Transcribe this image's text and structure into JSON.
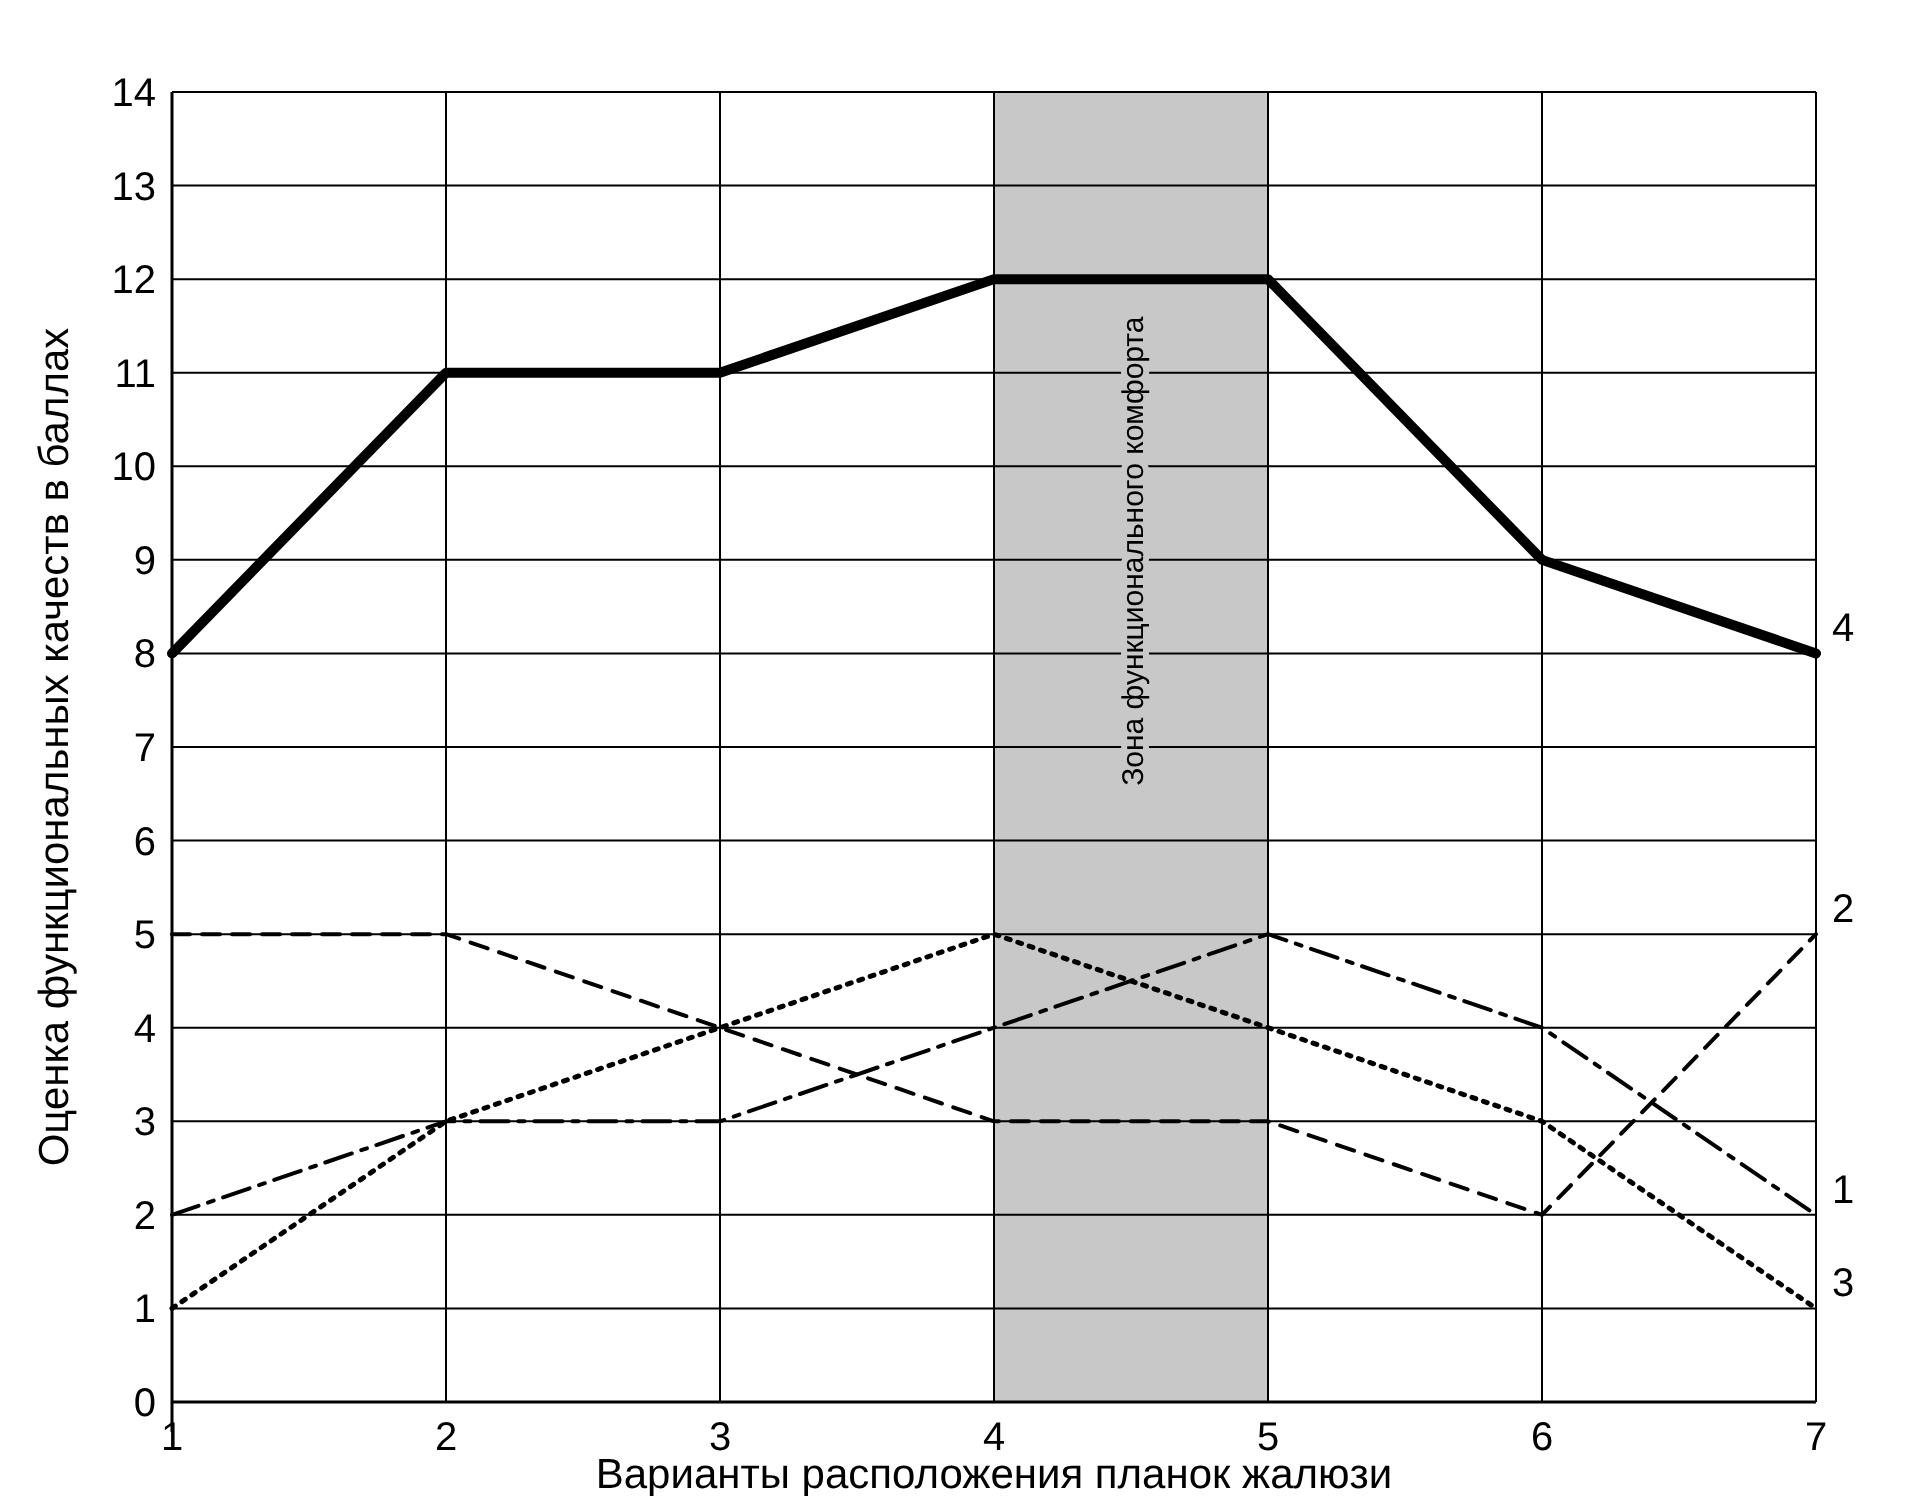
{
  "chart_data": {
    "type": "line",
    "xlabel": "Варианты расположения планок жалюзи",
    "ylabel": "Оценка функциональных качеств в баллах",
    "x": [
      1,
      2,
      3,
      4,
      5,
      6,
      7
    ],
    "xlim": [
      1,
      7
    ],
    "xticks": [
      1,
      2,
      3,
      4,
      5,
      6,
      7
    ],
    "ylim": [
      0,
      14
    ],
    "yticks": [
      0,
      1,
      2,
      3,
      4,
      5,
      6,
      7,
      8,
      9,
      10,
      11,
      12,
      13,
      14
    ],
    "grid": true,
    "legend": false,
    "marker": "none",
    "bands": [
      {
        "axis": "x",
        "from": 4,
        "to": 5,
        "label": "Зона функционального комфорта",
        "color": "#c8c8c8"
      }
    ],
    "series": [
      {
        "name": "1",
        "color": "#000000",
        "line_style": "dashdot",
        "values": [
          2,
          3,
          3,
          4,
          5,
          4,
          2
        ]
      },
      {
        "name": "2",
        "color": "#000000",
        "line_style": "dashed",
        "values": [
          5,
          5,
          4,
          3,
          3,
          2,
          5
        ]
      },
      {
        "name": "3",
        "color": "#000000",
        "line_style": "dotted",
        "values": [
          1,
          3,
          4,
          5,
          4,
          3,
          1
        ]
      },
      {
        "name": "4",
        "color": "#000000",
        "line_style": "solid",
        "values": [
          8,
          11,
          11,
          12,
          12,
          9,
          8
        ]
      }
    ]
  }
}
